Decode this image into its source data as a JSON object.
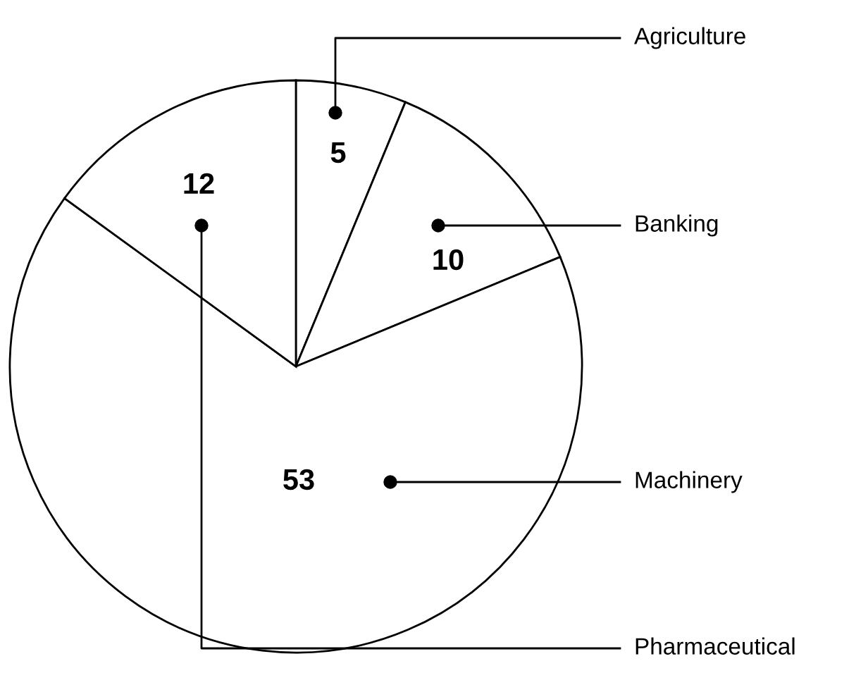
{
  "chart_data": {
    "type": "pie",
    "categories": [
      "Agriculture",
      "Banking",
      "Machinery",
      "Pharmaceutical"
    ],
    "values": [
      5,
      10,
      53,
      12
    ],
    "colors": [
      "#ffffff",
      "#ffffff",
      "#ffffff",
      "#ffffff"
    ],
    "data_labels": true,
    "legend": false
  }
}
